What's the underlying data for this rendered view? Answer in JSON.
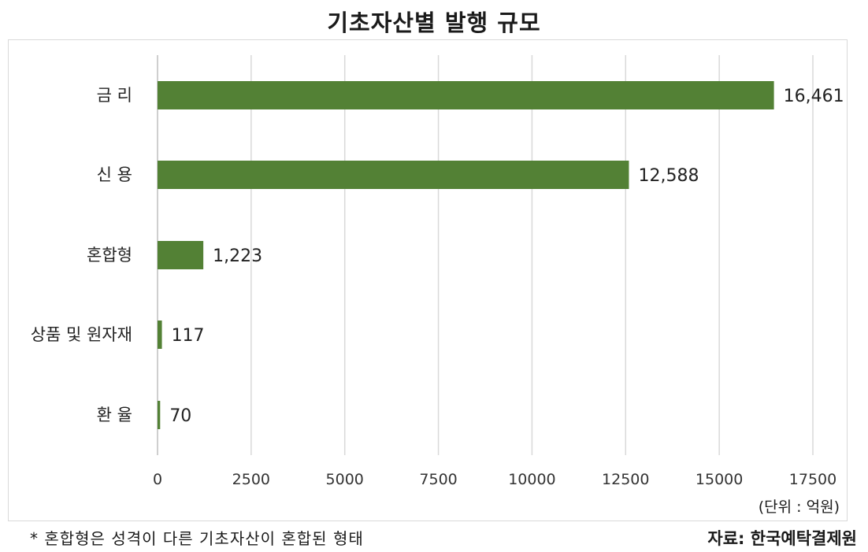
{
  "chart_data": {
    "type": "bar",
    "orientation": "horizontal",
    "title": "기초자산별 발행 규모",
    "categories": [
      "금 리",
      "신 용",
      "혼합형",
      "상품 및 원자재",
      "환 율"
    ],
    "values": [
      16461,
      12588,
      1223,
      117,
      70
    ],
    "value_labels": [
      "16,461",
      "12,588",
      "1,223",
      "117",
      "70"
    ],
    "xlim": [
      0,
      17500
    ],
    "xticks": [
      0,
      2500,
      5000,
      7500,
      10000,
      12500,
      15000,
      17500
    ],
    "xtick_labels": [
      "0",
      "2500",
      "5000",
      "7500",
      "10000",
      "12500",
      "15000",
      "17500"
    ],
    "grid": true,
    "bar_color": "#538135",
    "unit_label": "(단위 : 억원)"
  },
  "footnote": "* 혼합형은 성격이 다른 기초자산이 혼합된 형태",
  "source": "자료: 한국예탁결제원"
}
